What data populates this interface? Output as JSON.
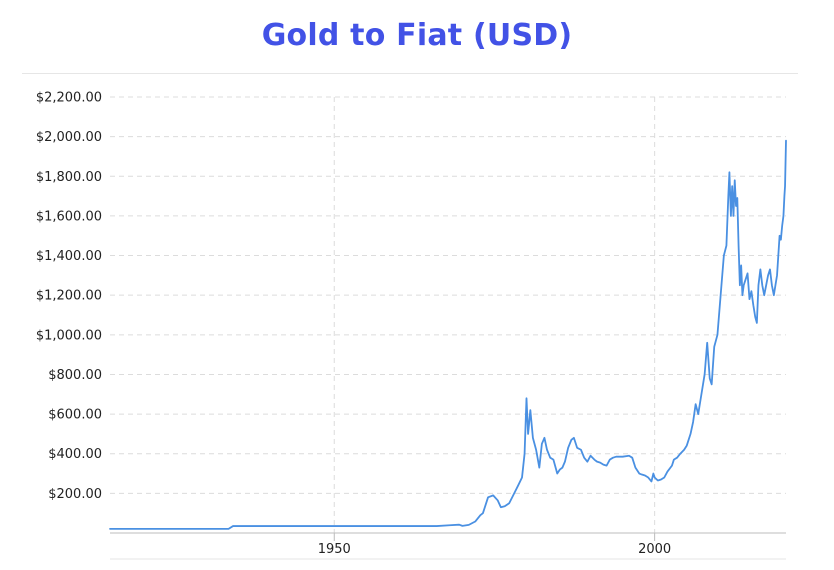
{
  "chart_data": {
    "type": "line",
    "title": "Gold to Fiat (USD)",
    "xlabel": "",
    "ylabel": "",
    "xlim": [
      1915,
      2020.5
    ],
    "ylim": [
      0,
      2200
    ],
    "y_ticks": [
      {
        "value": 200,
        "label": "$200.00"
      },
      {
        "value": 400,
        "label": "$400.00"
      },
      {
        "value": 600,
        "label": "$600.00"
      },
      {
        "value": 800,
        "label": "$800.00"
      },
      {
        "value": 1000,
        "label": "$1,000.00"
      },
      {
        "value": 1200,
        "label": "$1,200.00"
      },
      {
        "value": 1400,
        "label": "$1,400.00"
      },
      {
        "value": 1600,
        "label": "$1,600.00"
      },
      {
        "value": 1800,
        "label": "$1,800.00"
      },
      {
        "value": 2000,
        "label": "$2,000.00"
      },
      {
        "value": 2200,
        "label": "$2,200.00"
      }
    ],
    "x_ticks": [
      {
        "value": 1950,
        "label": "1950"
      },
      {
        "value": 2000,
        "label": "2000"
      }
    ],
    "grid": true,
    "line_color": "#4a90e2",
    "series": [
      {
        "x": [
          1915,
          1930,
          1933.5,
          1934.2,
          1950,
          1960,
          1966,
          1968,
          1969.5,
          1970,
          1971,
          1972,
          1972.8,
          1973.2,
          1974,
          1974.8,
          1975.5,
          1976,
          1976.6,
          1977.3,
          1978,
          1978.7,
          1979.3,
          1979.7,
          1980,
          1980.25,
          1980.6,
          1981,
          1981.5,
          1982,
          1982.4,
          1982.8,
          1983.2,
          1983.7,
          1984.2,
          1984.8,
          1985.2,
          1985.6,
          1986,
          1986.5,
          1987,
          1987.4,
          1987.9,
          1988.5,
          1989,
          1989.5,
          1990,
          1990.6,
          1991,
          1991.5,
          1992,
          1992.5,
          1993,
          1993.5,
          1994,
          1995,
          1996,
          1996.5,
          1997,
          1997.6,
          1998,
          1998.5,
          1999,
          1999.5,
          1999.8,
          2000,
          2000.5,
          2001,
          2001.5,
          2002,
          2002.7,
          2003,
          2003.5,
          2004,
          2004.6,
          2005,
          2005.6,
          2006,
          2006.4,
          2006.8,
          2007.3,
          2007.8,
          2008.2,
          2008.6,
          2008.9,
          2009.3,
          2009.8,
          2010.3,
          2010.8,
          2011.2,
          2011.5,
          2011.67,
          2011.9,
          2012.1,
          2012.3,
          2012.5,
          2012.7,
          2012.9,
          2013.1,
          2013.3,
          2013.5,
          2013.7,
          2013.9,
          2014.2,
          2014.5,
          2014.8,
          2015.1,
          2015.4,
          2015.7,
          2015.95,
          2016.2,
          2016.5,
          2016.8,
          2017.1,
          2017.4,
          2017.7,
          2018,
          2018.3,
          2018.6,
          2018.85,
          2019.1,
          2019.3,
          2019.5,
          2019.7,
          2019.9,
          2020.1,
          2020.25,
          2020.35,
          2020.5
        ],
        "values": [
          20.7,
          20.7,
          21,
          35,
          35,
          35,
          35,
          39,
          42,
          36,
          41,
          58,
          90,
          100,
          180,
          190,
          165,
          130,
          135,
          150,
          195,
          240,
          280,
          400,
          680,
          500,
          620,
          480,
          420,
          330,
          450,
          480,
          420,
          380,
          370,
          300,
          320,
          330,
          360,
          430,
          470,
          480,
          430,
          420,
          380,
          360,
          390,
          370,
          360,
          355,
          345,
          340,
          370,
          380,
          385,
          385,
          390,
          380,
          330,
          300,
          295,
          290,
          280,
          260,
          300,
          280,
          265,
          270,
          280,
          310,
          340,
          370,
          380,
          400,
          420,
          440,
          500,
          560,
          650,
          600,
          700,
          800,
          960,
          780,
          750,
          940,
          1000,
          1200,
          1400,
          1450,
          1700,
          1820,
          1600,
          1750,
          1600,
          1780,
          1650,
          1690,
          1450,
          1250,
          1350,
          1200,
          1250,
          1280,
          1310,
          1180,
          1220,
          1150,
          1090,
          1060,
          1250,
          1330,
          1250,
          1200,
          1250,
          1300,
          1330,
          1250,
          1200,
          1250,
          1300,
          1400,
          1500,
          1480,
          1550,
          1600,
          1700,
          1750,
          1980
        ]
      }
    ]
  }
}
